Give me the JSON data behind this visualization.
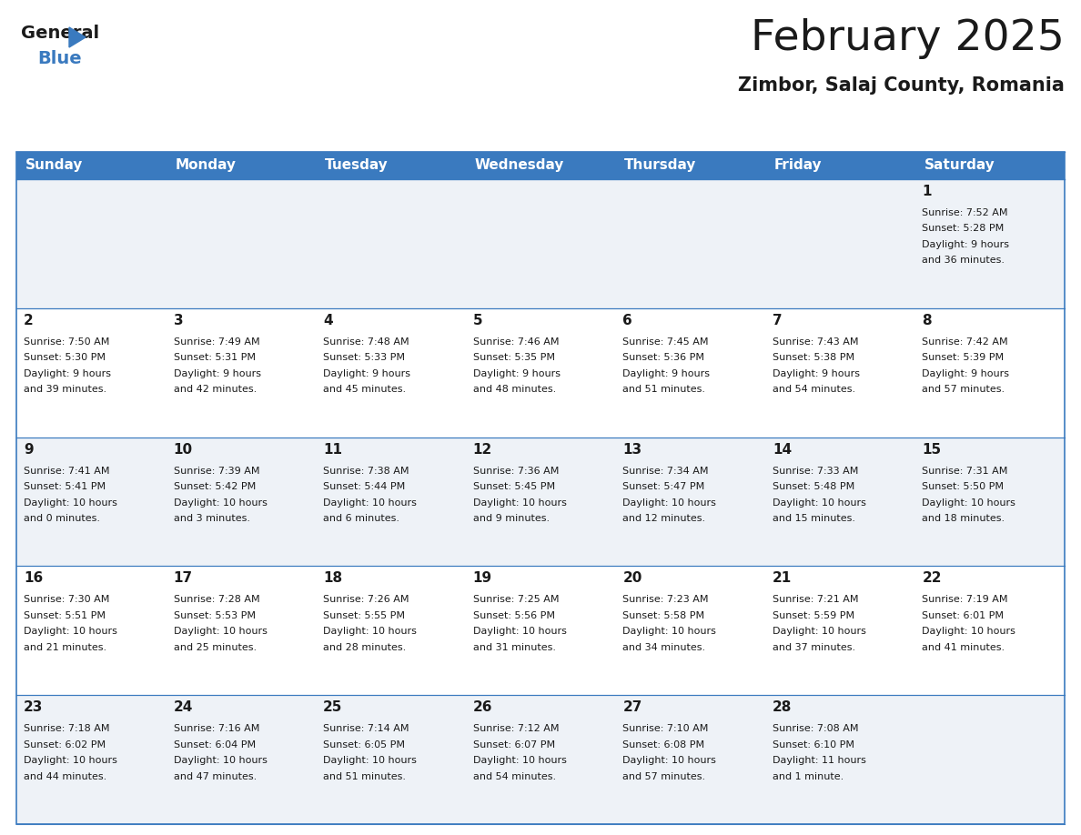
{
  "title": "February 2025",
  "subtitle": "Zimbor, Salaj County, Romania",
  "header_bg": "#3a7abf",
  "header_text": "#ffffff",
  "row_colors": [
    "#eef2f7",
    "#ffffff",
    "#eef2f7",
    "#ffffff",
    "#eef2f7"
  ],
  "border_color": "#3a7abf",
  "text_color": "#1a1a1a",
  "day_names": [
    "Sunday",
    "Monday",
    "Tuesday",
    "Wednesday",
    "Thursday",
    "Friday",
    "Saturday"
  ],
  "days": [
    {
      "day": 1,
      "col": 6,
      "row": 0,
      "sunrise": "7:52 AM",
      "sunset": "5:28 PM",
      "daylight_line1": "Daylight: 9 hours",
      "daylight_line2": "and 36 minutes."
    },
    {
      "day": 2,
      "col": 0,
      "row": 1,
      "sunrise": "7:50 AM",
      "sunset": "5:30 PM",
      "daylight_line1": "Daylight: 9 hours",
      "daylight_line2": "and 39 minutes."
    },
    {
      "day": 3,
      "col": 1,
      "row": 1,
      "sunrise": "7:49 AM",
      "sunset": "5:31 PM",
      "daylight_line1": "Daylight: 9 hours",
      "daylight_line2": "and 42 minutes."
    },
    {
      "day": 4,
      "col": 2,
      "row": 1,
      "sunrise": "7:48 AM",
      "sunset": "5:33 PM",
      "daylight_line1": "Daylight: 9 hours",
      "daylight_line2": "and 45 minutes."
    },
    {
      "day": 5,
      "col": 3,
      "row": 1,
      "sunrise": "7:46 AM",
      "sunset": "5:35 PM",
      "daylight_line1": "Daylight: 9 hours",
      "daylight_line2": "and 48 minutes."
    },
    {
      "day": 6,
      "col": 4,
      "row": 1,
      "sunrise": "7:45 AM",
      "sunset": "5:36 PM",
      "daylight_line1": "Daylight: 9 hours",
      "daylight_line2": "and 51 minutes."
    },
    {
      "day": 7,
      "col": 5,
      "row": 1,
      "sunrise": "7:43 AM",
      "sunset": "5:38 PM",
      "daylight_line1": "Daylight: 9 hours",
      "daylight_line2": "and 54 minutes."
    },
    {
      "day": 8,
      "col": 6,
      "row": 1,
      "sunrise": "7:42 AM",
      "sunset": "5:39 PM",
      "daylight_line1": "Daylight: 9 hours",
      "daylight_line2": "and 57 minutes."
    },
    {
      "day": 9,
      "col": 0,
      "row": 2,
      "sunrise": "7:41 AM",
      "sunset": "5:41 PM",
      "daylight_line1": "Daylight: 10 hours",
      "daylight_line2": "and 0 minutes."
    },
    {
      "day": 10,
      "col": 1,
      "row": 2,
      "sunrise": "7:39 AM",
      "sunset": "5:42 PM",
      "daylight_line1": "Daylight: 10 hours",
      "daylight_line2": "and 3 minutes."
    },
    {
      "day": 11,
      "col": 2,
      "row": 2,
      "sunrise": "7:38 AM",
      "sunset": "5:44 PM",
      "daylight_line1": "Daylight: 10 hours",
      "daylight_line2": "and 6 minutes."
    },
    {
      "day": 12,
      "col": 3,
      "row": 2,
      "sunrise": "7:36 AM",
      "sunset": "5:45 PM",
      "daylight_line1": "Daylight: 10 hours",
      "daylight_line2": "and 9 minutes."
    },
    {
      "day": 13,
      "col": 4,
      "row": 2,
      "sunrise": "7:34 AM",
      "sunset": "5:47 PM",
      "daylight_line1": "Daylight: 10 hours",
      "daylight_line2": "and 12 minutes."
    },
    {
      "day": 14,
      "col": 5,
      "row": 2,
      "sunrise": "7:33 AM",
      "sunset": "5:48 PM",
      "daylight_line1": "Daylight: 10 hours",
      "daylight_line2": "and 15 minutes."
    },
    {
      "day": 15,
      "col": 6,
      "row": 2,
      "sunrise": "7:31 AM",
      "sunset": "5:50 PM",
      "daylight_line1": "Daylight: 10 hours",
      "daylight_line2": "and 18 minutes."
    },
    {
      "day": 16,
      "col": 0,
      "row": 3,
      "sunrise": "7:30 AM",
      "sunset": "5:51 PM",
      "daylight_line1": "Daylight: 10 hours",
      "daylight_line2": "and 21 minutes."
    },
    {
      "day": 17,
      "col": 1,
      "row": 3,
      "sunrise": "7:28 AM",
      "sunset": "5:53 PM",
      "daylight_line1": "Daylight: 10 hours",
      "daylight_line2": "and 25 minutes."
    },
    {
      "day": 18,
      "col": 2,
      "row": 3,
      "sunrise": "7:26 AM",
      "sunset": "5:55 PM",
      "daylight_line1": "Daylight: 10 hours",
      "daylight_line2": "and 28 minutes."
    },
    {
      "day": 19,
      "col": 3,
      "row": 3,
      "sunrise": "7:25 AM",
      "sunset": "5:56 PM",
      "daylight_line1": "Daylight: 10 hours",
      "daylight_line2": "and 31 minutes."
    },
    {
      "day": 20,
      "col": 4,
      "row": 3,
      "sunrise": "7:23 AM",
      "sunset": "5:58 PM",
      "daylight_line1": "Daylight: 10 hours",
      "daylight_line2": "and 34 minutes."
    },
    {
      "day": 21,
      "col": 5,
      "row": 3,
      "sunrise": "7:21 AM",
      "sunset": "5:59 PM",
      "daylight_line1": "Daylight: 10 hours",
      "daylight_line2": "and 37 minutes."
    },
    {
      "day": 22,
      "col": 6,
      "row": 3,
      "sunrise": "7:19 AM",
      "sunset": "6:01 PM",
      "daylight_line1": "Daylight: 10 hours",
      "daylight_line2": "and 41 minutes."
    },
    {
      "day": 23,
      "col": 0,
      "row": 4,
      "sunrise": "7:18 AM",
      "sunset": "6:02 PM",
      "daylight_line1": "Daylight: 10 hours",
      "daylight_line2": "and 44 minutes."
    },
    {
      "day": 24,
      "col": 1,
      "row": 4,
      "sunrise": "7:16 AM",
      "sunset": "6:04 PM",
      "daylight_line1": "Daylight: 10 hours",
      "daylight_line2": "and 47 minutes."
    },
    {
      "day": 25,
      "col": 2,
      "row": 4,
      "sunrise": "7:14 AM",
      "sunset": "6:05 PM",
      "daylight_line1": "Daylight: 10 hours",
      "daylight_line2": "and 51 minutes."
    },
    {
      "day": 26,
      "col": 3,
      "row": 4,
      "sunrise": "7:12 AM",
      "sunset": "6:07 PM",
      "daylight_line1": "Daylight: 10 hours",
      "daylight_line2": "and 54 minutes."
    },
    {
      "day": 27,
      "col": 4,
      "row": 4,
      "sunrise": "7:10 AM",
      "sunset": "6:08 PM",
      "daylight_line1": "Daylight: 10 hours",
      "daylight_line2": "and 57 minutes."
    },
    {
      "day": 28,
      "col": 5,
      "row": 4,
      "sunrise": "7:08 AM",
      "sunset": "6:10 PM",
      "daylight_line1": "Daylight: 11 hours",
      "daylight_line2": "and 1 minute."
    }
  ],
  "fig_width": 11.88,
  "fig_height": 9.18,
  "dpi": 100
}
